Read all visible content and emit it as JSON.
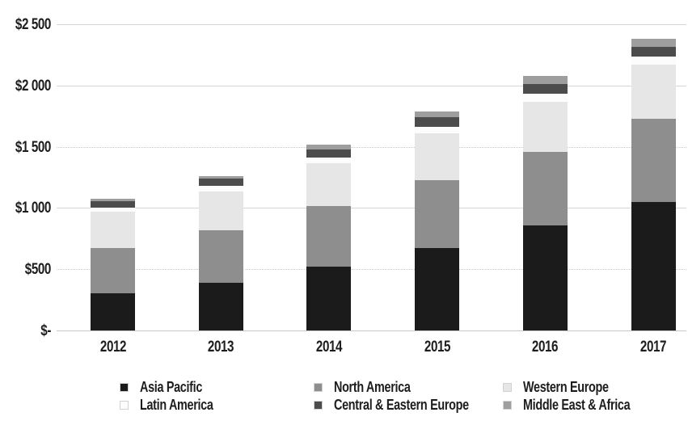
{
  "chart_data": {
    "type": "bar",
    "stacked": true,
    "title": "",
    "xlabel": "",
    "ylabel": "",
    "categories": [
      "2012",
      "2013",
      "2014",
      "2015",
      "2016",
      "2017"
    ],
    "series": [
      {
        "name": "Asia Pacific",
        "color": "#1b1b1b",
        "values": [
          305,
          390,
          520,
          675,
          860,
          1050
        ]
      },
      {
        "name": "North America",
        "color": "#8e8e8e",
        "values": [
          370,
          430,
          495,
          550,
          600,
          680
        ]
      },
      {
        "name": "Western Europe",
        "color": "#e6e6e6",
        "values": [
          295,
          315,
          350,
          385,
          410,
          440
        ]
      },
      {
        "name": "Latin America",
        "color": "#fcfcfc",
        "values": [
          35,
          45,
          45,
          55,
          65,
          65
        ]
      },
      {
        "name": "Central & Eastern Europe",
        "color": "#4c4c4c",
        "values": [
          50,
          60,
          70,
          75,
          80,
          80
        ]
      },
      {
        "name": "Middle East & Africa",
        "color": "#9e9e9e",
        "values": [
          18,
          22,
          40,
          45,
          65,
          65
        ]
      }
    ],
    "totals": [
      1073,
      1262,
      1520,
      1785,
      2080,
      2380
    ],
    "y_axis": {
      "tick_labels": [
        "$2 500",
        "$2 000",
        "$1 500",
        "$1 000",
        "$500",
        "$-"
      ],
      "tick_values": [
        2500,
        2000,
        1500,
        1000,
        500,
        0
      ],
      "range": [
        0,
        2500
      ],
      "dotted_tick_values": [
        1500,
        500
      ]
    },
    "grid": "horizontal",
    "legend_position": "bottom",
    "legend_columns": [
      [
        "Asia Pacific",
        "Latin America"
      ],
      [
        "North America",
        "Central & Eastern Europe"
      ],
      [
        "Western Europe",
        "Middle East & Africa"
      ]
    ]
  }
}
